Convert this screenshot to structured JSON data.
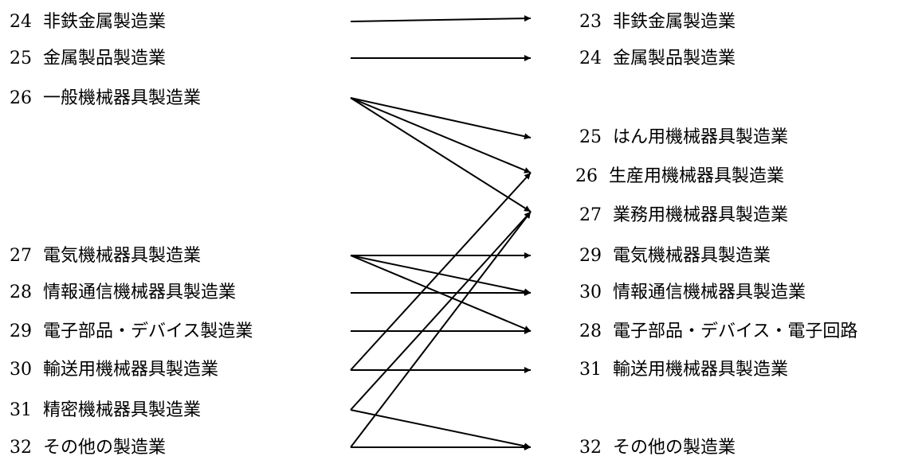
{
  "old_industries": [
    {
      "code": "24",
      "name": "非鉄金属製造業"
    },
    {
      "code": "25",
      "name": "金属製品製造業"
    },
    {
      "code": "26",
      "name": "一般機械器具製造業"
    },
    {
      "code": "27",
      "name": "電気機械器具製造業"
    },
    {
      "code": "28",
      "name": "情報通信機械器具製造業"
    },
    {
      "code": "29",
      "name": "電子部品・デバイス製造業"
    },
    {
      "code": "30",
      "name": "輸送用機械器具製造業"
    },
    {
      "code": "31",
      "name": "精密機械器具製造業"
    },
    {
      "code": "32",
      "name": "その他の製造業"
    }
  ],
  "new_industries": [
    {
      "code": "23",
      "name": "非鉄金属製造業"
    },
    {
      "code": "24",
      "name": "金属製品製造業"
    },
    {
      "code": "25",
      "name": "はん用機械器具製造業"
    },
    {
      "code": "26",
      "name": "生産用機械器具製造業"
    },
    {
      "code": "27",
      "name": "業務用機械器具製造業"
    },
    {
      "code": "29",
      "name": "電気機械器具製造業"
    },
    {
      "code": "30",
      "name": "情報通信機械器具製造業"
    },
    {
      "code": "28",
      "name": "電子部品・デバイス・電子回路"
    },
    {
      "code": "31",
      "name": "輸送用機械器具製造業"
    },
    {
      "code": "32",
      "name": "その他の製造業"
    }
  ],
  "mappings": [
    {
      "from": 0,
      "to": 0
    },
    {
      "from": 1,
      "to": 1
    },
    {
      "from": 2,
      "to": 2
    },
    {
      "from": 2,
      "to": 3
    },
    {
      "from": 2,
      "to": 4
    },
    {
      "from": 3,
      "to": 5
    },
    {
      "from": 3,
      "to": 6
    },
    {
      "from": 3,
      "to": 7
    },
    {
      "from": 4,
      "to": 6
    },
    {
      "from": 5,
      "to": 7
    },
    {
      "from": 6,
      "to": 8
    },
    {
      "from": 6,
      "to": 3
    },
    {
      "from": 7,
      "to": 9
    },
    {
      "from": 7,
      "to": 4
    },
    {
      "from": 8,
      "to": 9
    },
    {
      "from": 8,
      "to": 4
    }
  ]
}
